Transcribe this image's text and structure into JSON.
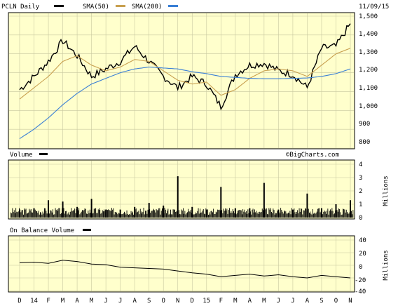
{
  "header": {
    "ticker_label": "PCLN Daily",
    "sma50_label": "SMA(50)",
    "sma200_label": "SMA(200)",
    "date": "11/09/15"
  },
  "colors": {
    "panel_bg": "#ffffcc",
    "price": "#000000",
    "sma50": "#c8a050",
    "sma200": "#3a7fd5",
    "volume": "#000000"
  },
  "price_panel": {
    "y_ticks": [
      "1,500",
      "1,400",
      "1,300",
      "1,200",
      "1,100",
      "1,000",
      "900",
      "800"
    ],
    "ylim": [
      800,
      1500
    ]
  },
  "volume_panel": {
    "title": "Volume",
    "watermark": "©BigCharts.com",
    "y_ticks": [
      "4",
      "3",
      "2",
      "1",
      "0"
    ],
    "unit": "Millions",
    "ylim": [
      0,
      4
    ]
  },
  "obv_panel": {
    "title": "On Balance Volume",
    "y_ticks": [
      "40",
      "20",
      "0",
      "-20",
      "-40"
    ],
    "unit": "Millions",
    "ylim": [
      -40,
      40
    ]
  },
  "x_axis": {
    "labels": [
      "D",
      "14",
      "F",
      "M",
      "A",
      "M",
      "J",
      "J",
      "A",
      "S",
      "O",
      "N",
      "D",
      "15",
      "F",
      "M",
      "A",
      "M",
      "J",
      "J",
      "A",
      "S",
      "O",
      "N"
    ]
  },
  "chart_data": [
    {
      "type": "line",
      "title": "PCLN Daily",
      "x": [
        "D",
        "14",
        "F",
        "M",
        "A",
        "M",
        "J",
        "J",
        "A",
        "S",
        "O",
        "N",
        "D",
        "15",
        "F",
        "M",
        "A",
        "M",
        "J",
        "J",
        "A",
        "S",
        "O",
        "N"
      ],
      "series": [
        {
          "name": "PCLN Daily",
          "values": [
            1110,
            1180,
            1260,
            1370,
            1290,
            1180,
            1220,
            1260,
            1340,
            1260,
            1180,
            1120,
            1180,
            1140,
            1020,
            1190,
            1240,
            1250,
            1210,
            1190,
            1120,
            1330,
            1340,
            1460
          ]
        },
        {
          "name": "SMA(50)",
          "values": [
            1060,
            1120,
            1180,
            1260,
            1290,
            1240,
            1210,
            1230,
            1270,
            1260,
            1210,
            1160,
            1140,
            1150,
            1080,
            1110,
            1170,
            1210,
            1220,
            1210,
            1180,
            1240,
            1300,
            1330
          ]
        },
        {
          "name": "SMA(200)",
          "values": [
            850,
            900,
            960,
            1030,
            1090,
            1140,
            1170,
            1200,
            1220,
            1230,
            1225,
            1220,
            1205,
            1195,
            1180,
            1175,
            1170,
            1168,
            1168,
            1170,
            1172,
            1180,
            1195,
            1220
          ]
        }
      ],
      "ylim": [
        800,
        1500
      ]
    },
    {
      "type": "bar",
      "title": "Volume",
      "x": [
        "D",
        "14",
        "F",
        "M",
        "A",
        "M",
        "J",
        "J",
        "A",
        "S",
        "O",
        "N",
        "D",
        "15",
        "F",
        "M",
        "A",
        "M",
        "J",
        "J",
        "A",
        "S",
        "O",
        "N"
      ],
      "values": [
        0.6,
        0.7,
        1.3,
        1.2,
        0.8,
        1.4,
        0.6,
        0.6,
        0.8,
        1.1,
        0.9,
        3.1,
        0.8,
        0.6,
        2.3,
        0.7,
        0.7,
        2.6,
        0.6,
        0.6,
        1.8,
        0.7,
        1.0,
        1.3
      ],
      "ylabel": "Millions",
      "ylim": [
        0,
        4
      ]
    },
    {
      "type": "line",
      "title": "On Balance Volume",
      "x": [
        "D",
        "14",
        "F",
        "M",
        "A",
        "M",
        "J",
        "J",
        "A",
        "S",
        "O",
        "N",
        "D",
        "15",
        "F",
        "M",
        "A",
        "M",
        "J",
        "J",
        "A",
        "S",
        "O",
        "N"
      ],
      "values": [
        4,
        5,
        3,
        8,
        6,
        2,
        1,
        -3,
        -4,
        -5,
        -6,
        -9,
        -12,
        -14,
        -18,
        -16,
        -14,
        -17,
        -15,
        -18,
        -20,
        -16,
        -18,
        -20
      ],
      "ylabel": "Millions",
      "ylim": [
        -40,
        40
      ]
    }
  ]
}
